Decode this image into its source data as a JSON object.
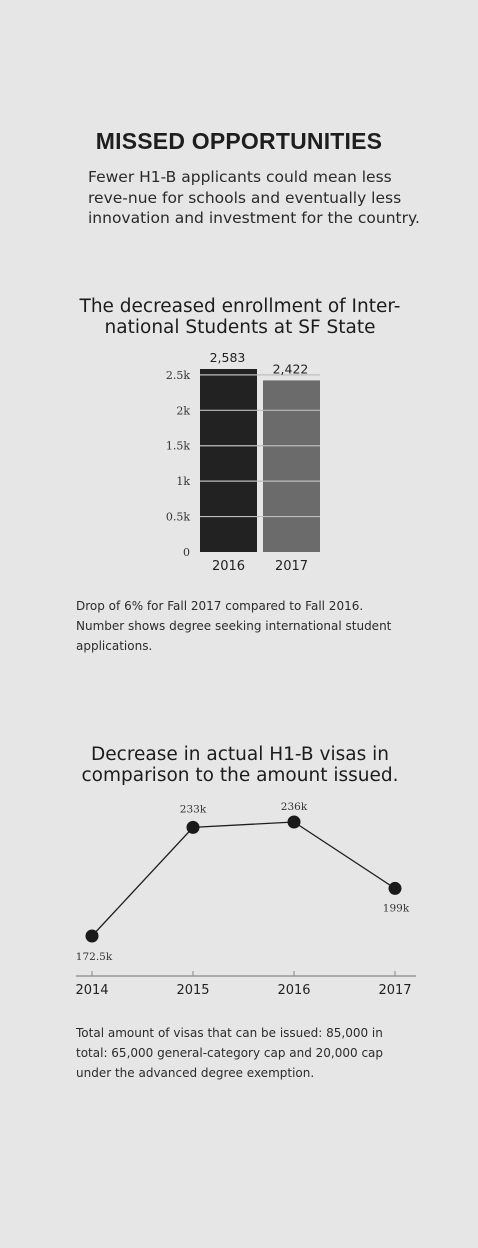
{
  "header": {
    "headline": "MISSED OPPORTUNITIES",
    "intro": "Fewer H1-B applicants could mean less reve-nue for schools and eventually less innovation and investment for the country."
  },
  "colors": {
    "background": "#e6e6e6",
    "bar_2016": "#222222",
    "bar_2017": "#6b6b6b",
    "line": "#1e1e1e"
  },
  "chart_data": [
    {
      "type": "bar",
      "title": "The decreased enrollment of Inter-national Students at SF State",
      "categories": [
        "2016",
        "2017"
      ],
      "values": [
        2583,
        2422
      ],
      "data_labels": [
        "2,583",
        "2,422"
      ],
      "yticks": [
        "0",
        "0.5k",
        "1k",
        "1.5k",
        "2k",
        "2.5k"
      ],
      "ylim": [
        0,
        2583
      ],
      "note": "Drop of 6% for Fall 2017 compared to Fall 2016. Number shows degree seeking international student applications."
    },
    {
      "type": "line",
      "title": "Decrease in actual H1-B visas in comparison to the amount issued.",
      "x": [
        "2014",
        "2015",
        "2016",
        "2017"
      ],
      "values": [
        172500,
        233000,
        236000,
        199000
      ],
      "data_labels": [
        "172.5k",
        "233k",
        "236k",
        "199k"
      ],
      "note": "Total amount of visas that can be issued: 85,000 in total: 65,000 general-category cap and 20,000 cap under the advanced degree exemption."
    }
  ]
}
